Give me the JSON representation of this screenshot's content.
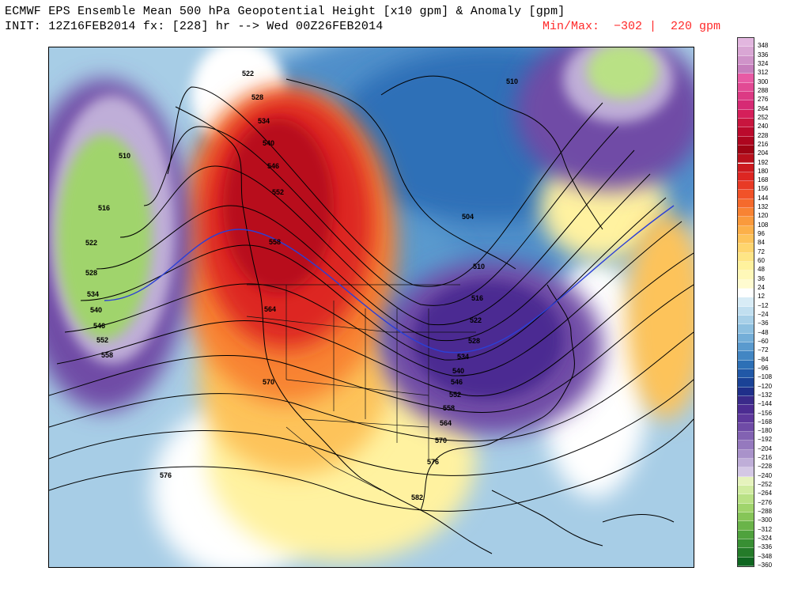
{
  "header": {
    "title_line1": "ECMWF EPS Ensemble Mean 500 hPa Geopotential Height [x10 gpm] & Anomaly [gpm]",
    "title_line2": "INIT: 12Z16FEB2014 fx: [228] hr --> Wed 00Z26FEB2014",
    "minmax": "Min/Max:  −302 |  220 gpm"
  },
  "colors": {
    "ocean_bg": "#a9cfe6",
    "minmax_red": "#ff2a2a",
    "contour": "#000000",
    "blue_contour": "#2b3fd6"
  },
  "map": {
    "contour_labels": [
      "510",
      "516",
      "522",
      "528",
      "534",
      "540",
      "546",
      "552",
      "558",
      "564",
      "570",
      "576",
      "582",
      "504"
    ]
  },
  "colorbar": {
    "labels": [
      "348",
      "336",
      "324",
      "312",
      "300",
      "288",
      "276",
      "264",
      "252",
      "240",
      "228",
      "216",
      "204",
      "192",
      "180",
      "168",
      "156",
      "144",
      "132",
      "120",
      "108",
      "96",
      "84",
      "72",
      "60",
      "48",
      "36",
      "24",
      "12",
      "−12",
      "−24",
      "−36",
      "−48",
      "−60",
      "−72",
      "−84",
      "−96",
      "−108",
      "−120",
      "−132",
      "−144",
      "−156",
      "−168",
      "−180",
      "−192",
      "−204",
      "−216",
      "−228",
      "−240",
      "−252",
      "−264",
      "−276",
      "−288",
      "−300",
      "−312",
      "−324",
      "−336",
      "−348",
      "−360"
    ],
    "colors": [
      "#e2b6df",
      "#d9a6d4",
      "#cf93c9",
      "#c67fbd",
      "#e85aa4",
      "#e24a94",
      "#dc3a84",
      "#d62a74",
      "#d51f5a",
      "#c8153e",
      "#bb0a2c",
      "#ae061f",
      "#9f0414",
      "#b8101c",
      "#cc1a1f",
      "#dd2622",
      "#e83a25",
      "#f15228",
      "#f56a2c",
      "#f88333",
      "#fa9a3c",
      "#fcb049",
      "#fdc35a",
      "#fed56e",
      "#fee585",
      "#fff29d",
      "#fff8b8",
      "#fffbd0",
      "#ffffff",
      "#d8ecf6",
      "#c1dff0",
      "#a8d0e8",
      "#8ec0e0",
      "#74aed8",
      "#5a9ace",
      "#4286c3",
      "#2d70b6",
      "#2158a7",
      "#1a4296",
      "#1f2f8a",
      "#3a2a8a",
      "#4c2c92",
      "#5e389c",
      "#6f4ba6",
      "#8262b2",
      "#9579be",
      "#a992ca",
      "#bfaed8",
      "#d4c8e5",
      "#e6f3bd",
      "#d1eca1",
      "#b9e185",
      "#a0d46c",
      "#86c558",
      "#6ab449",
      "#4fa23d",
      "#388f33",
      "#247b29",
      "#0f6620"
    ]
  }
}
